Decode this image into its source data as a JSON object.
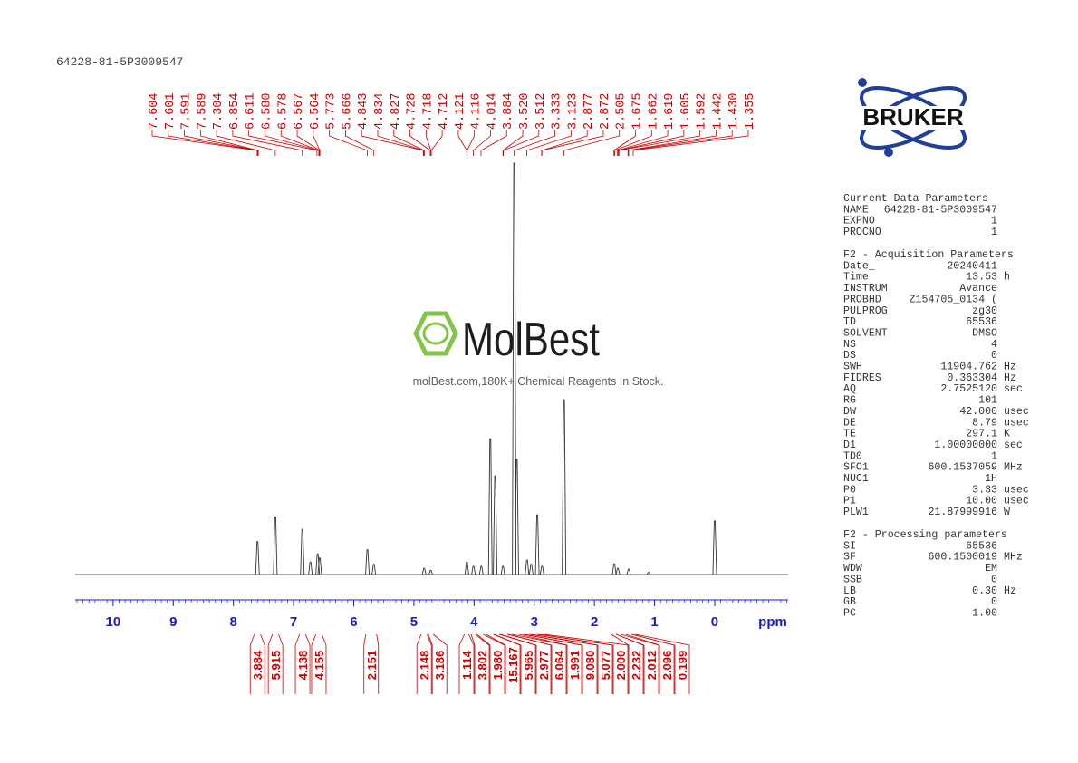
{
  "sample_id": "64228-81-5P3009547",
  "logo": "BRUKER",
  "watermark": {
    "brand": "MolBest",
    "tagline": "molBest.com,180K+ Chemical Reagents In Stock."
  },
  "chart_data": {
    "type": "nmr",
    "xlabel": "ppm",
    "xlim": [
      10.63,
      -1.22
    ],
    "xticks": [
      10,
      9,
      8,
      7,
      6,
      5,
      4,
      3,
      2,
      1,
      0
    ],
    "ylim": [
      0,
      100
    ],
    "color": "#333333",
    "label_color": "#cc0000",
    "axis_color": "#1a1acc",
    "signals": {
      "x": [
        7.6,
        7.304,
        6.854,
        6.72,
        6.6,
        6.565,
        5.773,
        5.666,
        4.83,
        4.72,
        4.12,
        4.01,
        3.88,
        3.73,
        3.65,
        3.52,
        3.333,
        3.29,
        3.12,
        3.05,
        2.95,
        2.87,
        2.505,
        1.67,
        1.61,
        1.43,
        1.1,
        0
      ],
      "y": [
        8,
        14,
        11,
        3,
        5,
        4,
        6,
        2.5,
        1.5,
        1,
        3,
        2,
        2,
        33,
        24,
        2,
        100,
        28,
        3.5,
        2.5,
        14.5,
        2,
        42.5,
        2.6,
        1.5,
        1.3,
        0.5,
        13
      ]
    },
    "peaks": {
      "values": [
        7.604,
        7.601,
        7.591,
        7.589,
        7.304,
        6.854,
        6.611,
        6.58,
        6.578,
        6.567,
        6.564,
        5.773,
        5.666,
        4.843,
        4.834,
        4.827,
        4.728,
        4.718,
        4.712,
        4.121,
        4.116,
        4.014,
        3.884,
        3.52,
        3.512,
        3.333,
        3.123,
        2.877,
        2.872,
        2.505,
        1.675,
        1.662,
        1.619,
        1.605,
        1.592,
        1.442,
        1.43,
        1.355
      ],
      "value_labels": [
        "7.604",
        "7.601",
        "7.591",
        "7.589",
        "7.304",
        "6.854",
        "6.611",
        "6.580",
        "6.578",
        "6.567",
        "6.564",
        "5.773",
        "5.666",
        "4.843",
        "4.834",
        "4.827",
        "4.728",
        "4.718",
        "4.712",
        "4.121",
        "4.116",
        "4.014",
        "3.884",
        "3.520",
        "3.512",
        "3.333",
        "3.123",
        "2.877",
        "2.872",
        "2.505",
        "1.675",
        "1.662",
        "1.619",
        "1.605",
        "1.592",
        "1.442",
        "1.430",
        "1.355"
      ]
    },
    "integrals": {
      "values": [
        3.884,
        5.915,
        4.138,
        4.155,
        2.151,
        2.148,
        3.186,
        1.114,
        3.802,
        1.98,
        15.167,
        5.965,
        2.977,
        6.064,
        1.991,
        9.08,
        5.077,
        2,
        2.232,
        2.012,
        2.096,
        0.199
      ],
      "value_labels": [
        "3.884",
        "5.915",
        "4.138",
        "4.155",
        "2.151",
        "2.148",
        "3.186",
        "1.114",
        "3.802",
        "1.980",
        "15.167",
        "5.965",
        "2.977",
        "6.064",
        "1.991",
        "9.080",
        "5.077",
        "2.000",
        "2.232",
        "2.012",
        "2.096",
        "0.199"
      ],
      "ranges": [
        [
          7.65,
          7.55
        ],
        [
          7.35,
          7.25
        ],
        [
          6.9,
          6.8
        ],
        [
          6.63,
          6.53
        ],
        [
          5.8,
          5.62
        ],
        [
          4.88,
          4.78
        ],
        [
          4.76,
          4.68
        ],
        [
          4.16,
          4.09
        ],
        [
          4.05,
          3.98
        ],
        [
          3.95,
          3.85
        ],
        [
          3.8,
          3.68
        ],
        [
          3.67,
          3.58
        ],
        [
          3.56,
          3.45
        ],
        [
          3.43,
          3.37
        ],
        [
          3.25,
          3.18
        ],
        [
          3.16,
          3.08
        ],
        [
          3.05,
          2.95
        ],
        [
          2.92,
          2.83
        ],
        [
          1.72,
          1.64
        ],
        [
          1.64,
          1.56
        ],
        [
          1.48,
          1.38
        ],
        [
          1.38,
          1.32
        ]
      ]
    }
  },
  "parameters": [
    {
      "heading": "Current Data Parameters",
      "rows": [
        [
          "NAME",
          "64228-81-5P3009547"
        ],
        [
          "EXPNO",
          "1"
        ],
        [
          "PROCNO",
          "1"
        ]
      ]
    },
    {
      "heading": "F2 - Acquisition Parameters",
      "rows": [
        [
          "Date_",
          "20240411"
        ],
        [
          "Time",
          "13.53",
          "h"
        ],
        [
          "INSTRUM",
          "Avance"
        ],
        [
          "PROBHD",
          "Z154705_0134 ("
        ],
        [
          "PULPROG",
          "zg30"
        ],
        [
          "TD",
          "65536"
        ],
        [
          "SOLVENT",
          "DMSO"
        ],
        [
          "NS",
          "4"
        ],
        [
          "DS",
          "0"
        ],
        [
          "SWH",
          "11904.762",
          "Hz"
        ],
        [
          "FIDRES",
          "0.363304",
          "Hz"
        ],
        [
          "AQ",
          "2.7525120",
          "sec"
        ],
        [
          "RG",
          "101"
        ],
        [
          "DW",
          "42.000",
          "usec"
        ],
        [
          "DE",
          "8.79",
          "usec"
        ],
        [
          "TE",
          "297.1",
          "K"
        ],
        [
          "D1",
          "1.00000000",
          "sec"
        ],
        [
          "TD0",
          "1"
        ],
        [
          "SFO1",
          "600.1537059",
          "MHz"
        ],
        [
          "NUC1",
          "1H"
        ],
        [
          "P0",
          "3.33",
          "usec"
        ],
        [
          "P1",
          "10.00",
          "usec"
        ],
        [
          "PLW1",
          "21.87999916",
          "W"
        ]
      ]
    },
    {
      "heading": "F2 - Processing parameters",
      "rows": [
        [
          "SI",
          "65536"
        ],
        [
          "SF",
          "600.1500019",
          "MHz"
        ],
        [
          "WDW",
          "EM"
        ],
        [
          "SSB",
          "0"
        ],
        [
          "LB",
          "0.30",
          "Hz"
        ],
        [
          "GB",
          "0"
        ],
        [
          "PC",
          "1.00"
        ]
      ]
    }
  ]
}
